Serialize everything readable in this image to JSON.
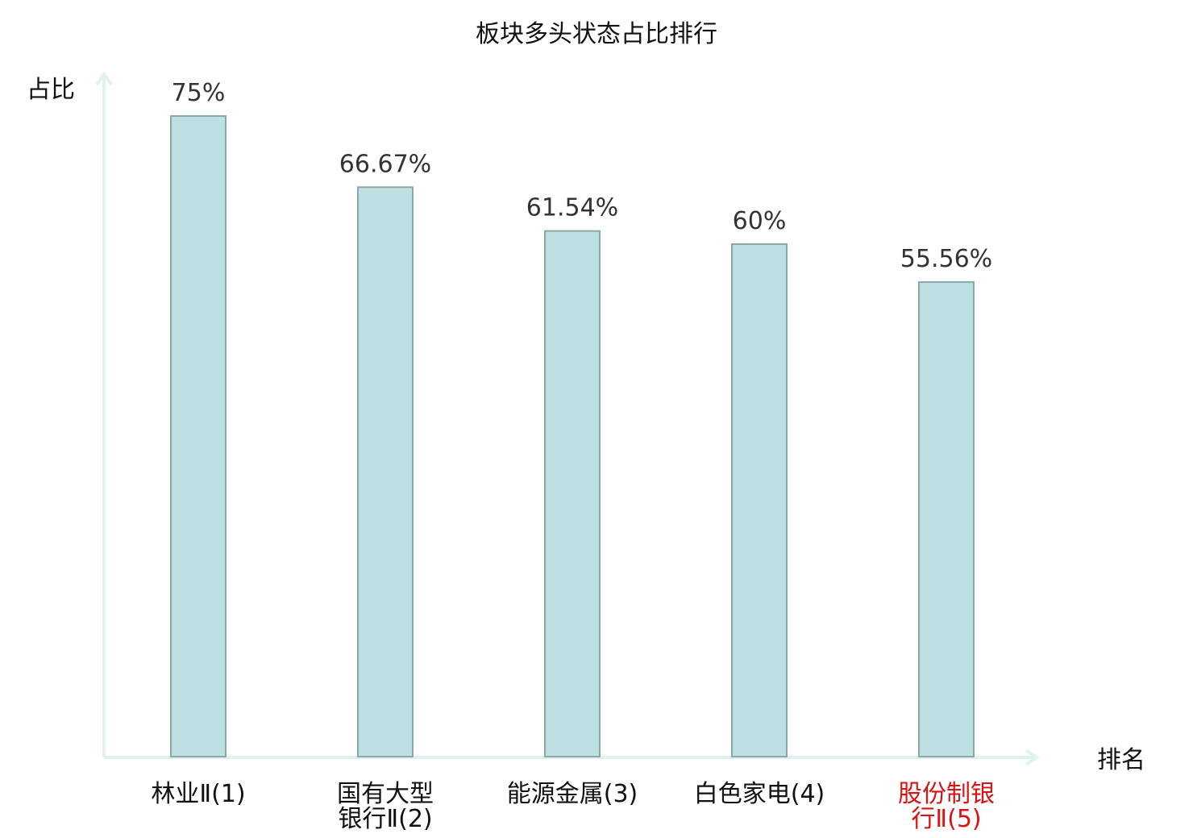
{
  "chart_data": {
    "type": "bar",
    "title": "板块多头状态占比排行",
    "xlabel": "排名",
    "ylabel": "占比",
    "categories": [
      [
        "林业Ⅱ(1)"
      ],
      [
        "国有大型",
        "银行Ⅱ(2)"
      ],
      [
        "能源金属(3)"
      ],
      [
        "白色家电(4)"
      ],
      [
        "股份制银",
        "行Ⅱ(5)"
      ]
    ],
    "values": [
      75,
      66.67,
      61.54,
      60,
      55.56
    ],
    "value_labels": [
      "75%",
      "66.67%",
      "61.54%",
      "60%",
      "55.56%"
    ],
    "ylim": [
      0,
      75
    ],
    "grid": false,
    "highlight_index": 4
  },
  "colors": {
    "bar_fill": "#bde0e2",
    "bar_stroke": "#8aa8aa",
    "axis": "#dff2f0",
    "highlight_text": "#dd1111",
    "normal_text": "#111111",
    "value_text": "#333333"
  }
}
